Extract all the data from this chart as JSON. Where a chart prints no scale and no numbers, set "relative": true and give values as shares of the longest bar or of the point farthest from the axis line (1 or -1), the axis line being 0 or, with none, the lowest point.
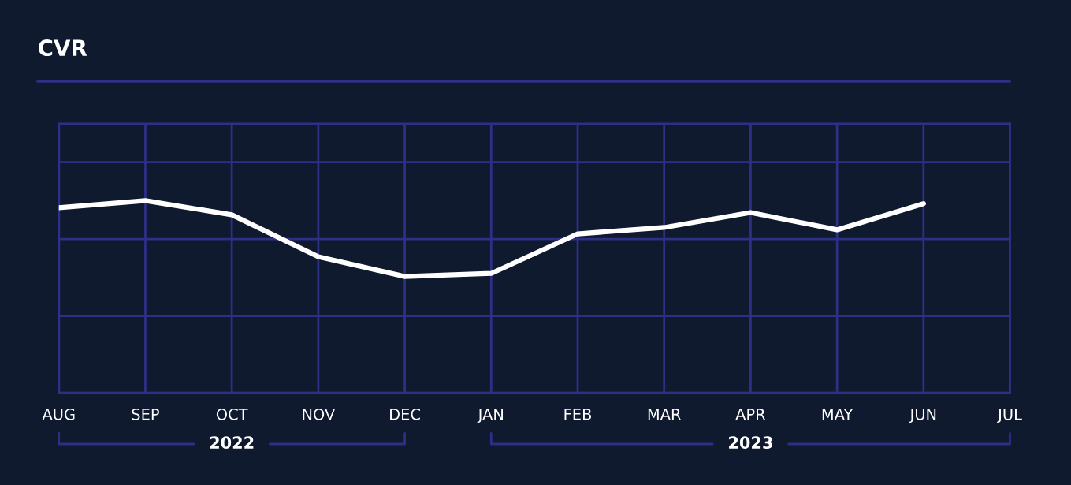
{
  "chart_data": {
    "type": "line",
    "title": "CVR",
    "relative": true,
    "categories": [
      "AUG",
      "SEP",
      "OCT",
      "NOV",
      "DEC",
      "JAN",
      "FEB",
      "MAR",
      "APR",
      "MAY",
      "JUN",
      "JUL"
    ],
    "series": [
      {
        "color": "#ffffff",
        "values": [
          0.963,
          1,
          0.926,
          0.708,
          0.605,
          0.621,
          0.827,
          0.86,
          0.938,
          0.848,
          0.984,
          null
        ]
      }
    ],
    "grid": true,
    "tick_labels": "x",
    "marker": "none",
    "line_style": "solid",
    "annotations": [
      "2022",
      "2023"
    ]
  }
}
